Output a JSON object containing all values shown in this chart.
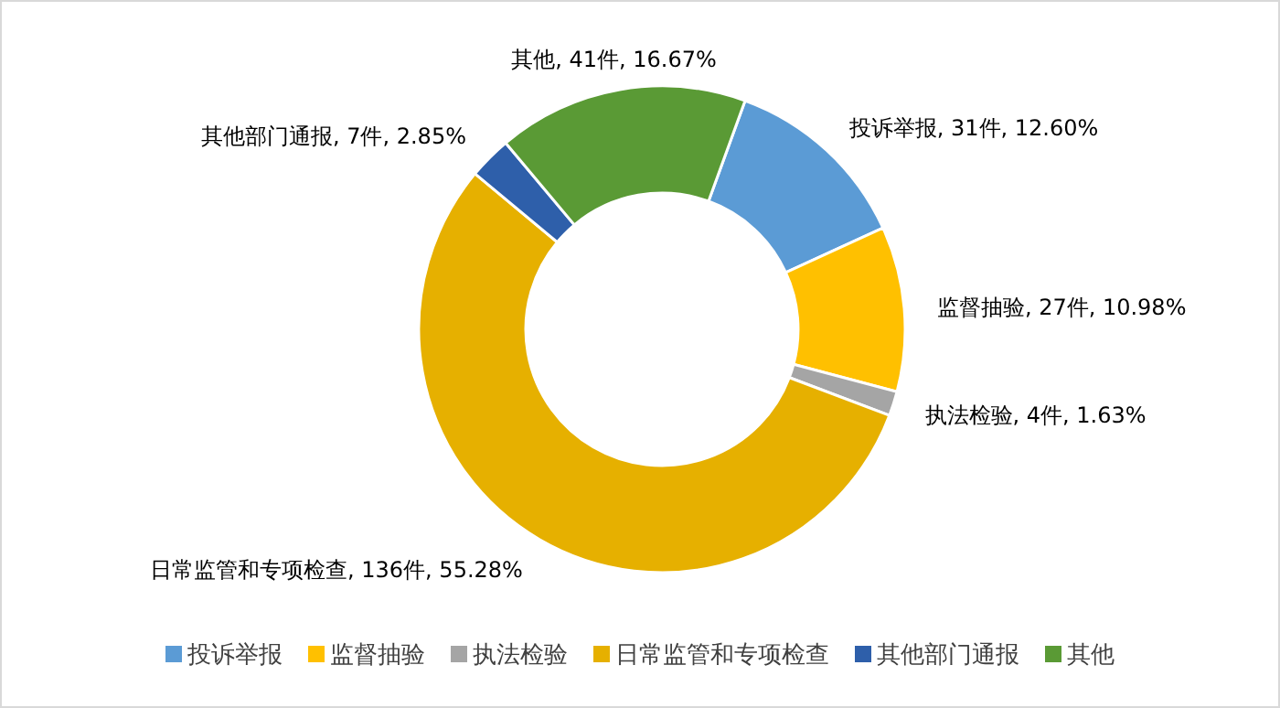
{
  "chart_data": {
    "type": "donut",
    "categories": [
      "投诉举报",
      "监督抽验",
      "执法检验",
      "日常监管和专项检查",
      "其他部门通报",
      "其他"
    ],
    "values": [
      31,
      27,
      4,
      136,
      7,
      41
    ],
    "colors": [
      "#5b9bd5",
      "#ffc000",
      "#a5a5a5",
      "#e6b000",
      "#2e5faa",
      "#5a9a35"
    ],
    "value_labels": [
      "投诉举报, 31件, 12.60%",
      "监督抽验, 27件, 10.98%",
      "执法检验, 4件, 1.63%",
      "日常监管和专项检查, 136件, 55.28%",
      "其他部门通报, 7件, 2.85%",
      "其他, 41件, 16.67%"
    ],
    "legend": "bottom"
  }
}
